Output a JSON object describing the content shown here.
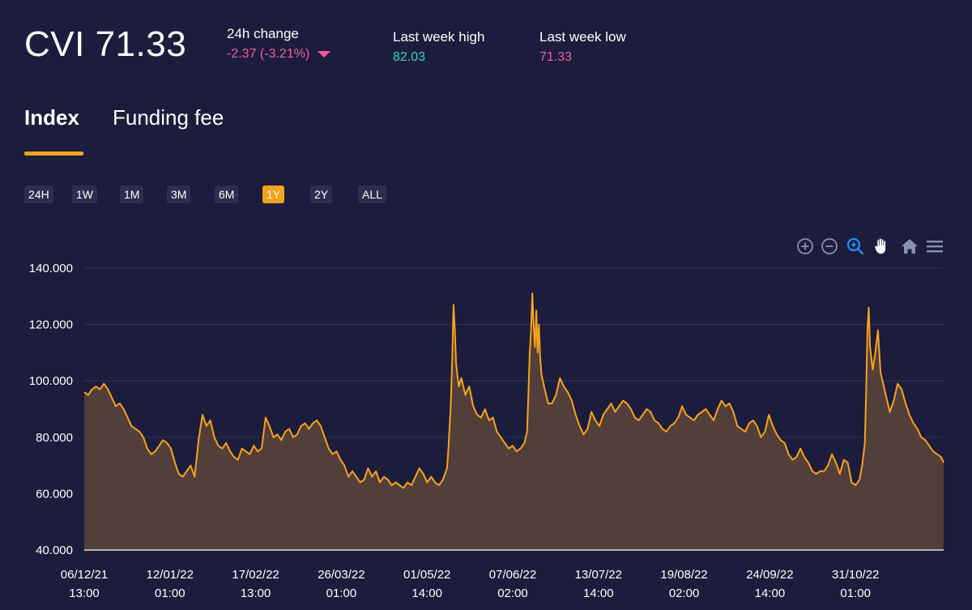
{
  "header": {
    "title": "CVI 71.33",
    "change_label": "24h change",
    "change_value": "-2.37 (-3.21%)",
    "high_label": "Last week high",
    "high_value": "82.03",
    "low_label": "Last week low",
    "low_value": "71.33"
  },
  "tabs": [
    {
      "label": "Index",
      "active": true
    },
    {
      "label": "Funding fee",
      "active": false
    }
  ],
  "ranges": [
    {
      "label": "24H",
      "active": false
    },
    {
      "label": "1W",
      "active": false
    },
    {
      "label": "1M",
      "active": false
    },
    {
      "label": "3M",
      "active": false
    },
    {
      "label": "6M",
      "active": false
    },
    {
      "label": "1Y",
      "active": true
    },
    {
      "label": "2Y",
      "active": false
    },
    {
      "label": "ALL",
      "active": false
    }
  ],
  "toolbar": [
    "zoom-in-icon",
    "zoom-out-icon",
    "magnifier-icon",
    "pan-hand-icon",
    "home-icon",
    "menu-icon"
  ],
  "colors": {
    "background": "#1c1c3c",
    "accent": "#f7a21b",
    "negative": "#f0609b",
    "positive": "#38d6c2",
    "area_fill": "#523f3a"
  },
  "chart_data": {
    "type": "area",
    "title": "",
    "xlabel": "",
    "ylabel": "",
    "ylim": [
      40,
      140
    ],
    "y_ticks": [
      "40.000",
      "60.000",
      "80.000",
      "100.000",
      "120.000",
      "140.000"
    ],
    "x_ticks": [
      [
        "06/12/21",
        "13:00"
      ],
      [
        "12/01/22",
        "01:00"
      ],
      [
        "17/02/22",
        "13:00"
      ],
      [
        "26/03/22",
        "01:00"
      ],
      [
        "01/05/22",
        "14:00"
      ],
      [
        "07/06/22",
        "02:00"
      ],
      [
        "13/07/22",
        "14:00"
      ],
      [
        "19/08/22",
        "02:00"
      ],
      [
        "24/09/22",
        "14:00"
      ],
      [
        "31/10/22",
        "01:00"
      ]
    ],
    "grid": true,
    "series": [
      {
        "values": [
          [
            0,
            96
          ],
          [
            3,
            95
          ],
          [
            6,
            97
          ],
          [
            9,
            98
          ],
          [
            12,
            97
          ],
          [
            15,
            99
          ],
          [
            18,
            97
          ],
          [
            21,
            94
          ],
          [
            24,
            91
          ],
          [
            27,
            92
          ],
          [
            30,
            90
          ],
          [
            33,
            87
          ],
          [
            36,
            84
          ],
          [
            39,
            83
          ],
          [
            42,
            82
          ],
          [
            45,
            80
          ],
          [
            48,
            76
          ],
          [
            51,
            74
          ],
          [
            54,
            75
          ],
          [
            57,
            77
          ],
          [
            60,
            79
          ],
          [
            63,
            78
          ],
          [
            66,
            76
          ],
          [
            69,
            71
          ],
          [
            72,
            67
          ],
          [
            75,
            66
          ],
          [
            78,
            68
          ],
          [
            81,
            70
          ],
          [
            84,
            66
          ],
          [
            87,
            79
          ],
          [
            90,
            88
          ],
          [
            93,
            84
          ],
          [
            96,
            86
          ],
          [
            99,
            80
          ],
          [
            102,
            77
          ],
          [
            105,
            76
          ],
          [
            108,
            78
          ],
          [
            111,
            75
          ],
          [
            114,
            73
          ],
          [
            117,
            72
          ],
          [
            120,
            76
          ],
          [
            123,
            75
          ],
          [
            126,
            74
          ],
          [
            129,
            77
          ],
          [
            132,
            75
          ],
          [
            135,
            76
          ],
          [
            138,
            87
          ],
          [
            141,
            84
          ],
          [
            144,
            80
          ],
          [
            147,
            81
          ],
          [
            150,
            79
          ],
          [
            153,
            82
          ],
          [
            156,
            83
          ],
          [
            159,
            80
          ],
          [
            162,
            81
          ],
          [
            165,
            84
          ],
          [
            168,
            85
          ],
          [
            171,
            83
          ],
          [
            174,
            85
          ],
          [
            177,
            86
          ],
          [
            180,
            84
          ],
          [
            183,
            80
          ],
          [
            186,
            76
          ],
          [
            189,
            74
          ],
          [
            192,
            75
          ],
          [
            195,
            72
          ],
          [
            198,
            70
          ],
          [
            201,
            66
          ],
          [
            204,
            68
          ],
          [
            207,
            66
          ],
          [
            210,
            64
          ],
          [
            213,
            65
          ],
          [
            216,
            69
          ],
          [
            219,
            66
          ],
          [
            222,
            68
          ],
          [
            225,
            64
          ],
          [
            228,
            66
          ],
          [
            231,
            65
          ],
          [
            234,
            63
          ],
          [
            237,
            64
          ],
          [
            240,
            63
          ],
          [
            243,
            62
          ],
          [
            246,
            64
          ],
          [
            249,
            63
          ],
          [
            252,
            66
          ],
          [
            255,
            69
          ],
          [
            258,
            67
          ],
          [
            261,
            64
          ],
          [
            264,
            66
          ],
          [
            267,
            64
          ],
          [
            270,
            63
          ],
          [
            273,
            65
          ],
          [
            276,
            69
          ],
          [
            277,
            75
          ],
          [
            279,
            92
          ],
          [
            280,
            108
          ],
          [
            281,
            127
          ],
          [
            282,
            118
          ],
          [
            283,
            106
          ],
          [
            285,
            98
          ],
          [
            287,
            101
          ],
          [
            290,
            95
          ],
          [
            293,
            98
          ],
          [
            296,
            91
          ],
          [
            299,
            88
          ],
          [
            302,
            87
          ],
          [
            305,
            90
          ],
          [
            308,
            86
          ],
          [
            311,
            87
          ],
          [
            314,
            82
          ],
          [
            317,
            80
          ],
          [
            320,
            78
          ],
          [
            323,
            76
          ],
          [
            326,
            77
          ],
          [
            329,
            75
          ],
          [
            332,
            76
          ],
          [
            335,
            78
          ],
          [
            337,
            82
          ],
          [
            338,
            95
          ],
          [
            339,
            110
          ],
          [
            340,
            118
          ],
          [
            341,
            131
          ],
          [
            342,
            120
          ],
          [
            343,
            112
          ],
          [
            344,
            125
          ],
          [
            345,
            110
          ],
          [
            346,
            120
          ],
          [
            347,
            108
          ],
          [
            348,
            102
          ],
          [
            350,
            98
          ],
          [
            353,
            92
          ],
          [
            356,
            92
          ],
          [
            359,
            95
          ],
          [
            362,
            101
          ],
          [
            365,
            98
          ],
          [
            368,
            96
          ],
          [
            371,
            93
          ],
          [
            374,
            88
          ],
          [
            377,
            84
          ],
          [
            380,
            81
          ],
          [
            383,
            83
          ],
          [
            386,
            89
          ],
          [
            389,
            86
          ],
          [
            392,
            84
          ],
          [
            395,
            88
          ],
          [
            398,
            90
          ],
          [
            401,
            92
          ],
          [
            404,
            89
          ],
          [
            407,
            91
          ],
          [
            410,
            93
          ],
          [
            413,
            92
          ],
          [
            416,
            90
          ],
          [
            419,
            87
          ],
          [
            422,
            86
          ],
          [
            425,
            88
          ],
          [
            428,
            90
          ],
          [
            431,
            89
          ],
          [
            434,
            86
          ],
          [
            437,
            85
          ],
          [
            440,
            83
          ],
          [
            443,
            82
          ],
          [
            446,
            84
          ],
          [
            449,
            85
          ],
          [
            452,
            87
          ],
          [
            455,
            91
          ],
          [
            458,
            88
          ],
          [
            461,
            87
          ],
          [
            464,
            86
          ],
          [
            467,
            88
          ],
          [
            470,
            89
          ],
          [
            473,
            90
          ],
          [
            476,
            88
          ],
          [
            479,
            86
          ],
          [
            482,
            90
          ],
          [
            485,
            93
          ],
          [
            488,
            91
          ],
          [
            491,
            92
          ],
          [
            494,
            89
          ],
          [
            497,
            84
          ],
          [
            500,
            83
          ],
          [
            503,
            82
          ],
          [
            506,
            85
          ],
          [
            509,
            86
          ],
          [
            512,
            84
          ],
          [
            515,
            80
          ],
          [
            518,
            82
          ],
          [
            521,
            88
          ],
          [
            524,
            84
          ],
          [
            527,
            81
          ],
          [
            530,
            79
          ],
          [
            533,
            78
          ],
          [
            536,
            74
          ],
          [
            539,
            72
          ],
          [
            542,
            73
          ],
          [
            545,
            76
          ],
          [
            548,
            73
          ],
          [
            551,
            71
          ],
          [
            554,
            68
          ],
          [
            557,
            67
          ],
          [
            560,
            68
          ],
          [
            563,
            68
          ],
          [
            566,
            70
          ],
          [
            569,
            74
          ],
          [
            572,
            71
          ],
          [
            575,
            67
          ],
          [
            578,
            72
          ],
          [
            581,
            71
          ],
          [
            584,
            64
          ],
          [
            587,
            63
          ],
          [
            590,
            65
          ],
          [
            592,
            70
          ],
          [
            594,
            78
          ],
          [
            595,
            96
          ],
          [
            596,
            118
          ],
          [
            597,
            126
          ],
          [
            598,
            112
          ],
          [
            600,
            104
          ],
          [
            602,
            110
          ],
          [
            604,
            118
          ],
          [
            606,
            103
          ],
          [
            608,
            99
          ],
          [
            610,
            95
          ],
          [
            613,
            89
          ],
          [
            616,
            93
          ],
          [
            619,
            99
          ],
          [
            622,
            97
          ],
          [
            625,
            92
          ],
          [
            628,
            88
          ],
          [
            631,
            85
          ],
          [
            634,
            83
          ],
          [
            637,
            80
          ],
          [
            640,
            79
          ],
          [
            643,
            77
          ],
          [
            646,
            75
          ],
          [
            649,
            74
          ],
          [
            652,
            73
          ],
          [
            654,
            71
          ]
        ]
      }
    ]
  }
}
